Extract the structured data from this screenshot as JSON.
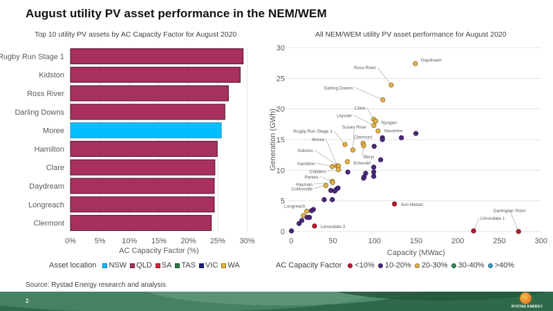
{
  "slide": {
    "title": "August utility PV asset performance in the NEM/WEM",
    "source": "Source: Rystad Energy research and analysis",
    "page_number": "2",
    "logo_text": "RYSTAD ENERGY"
  },
  "chart_data": [
    {
      "type": "bar",
      "orientation": "horizontal",
      "title": "Top 10 utility PV assets by AC Capacity Factor for August 2020",
      "xlabel": "AC Capacity Factor (%)",
      "ylabel": "",
      "xlim": [
        0,
        30
      ],
      "xticks": [
        0,
        5,
        10,
        15,
        20,
        25,
        30
      ],
      "xtick_labels": [
        "0%",
        "5%",
        "10%",
        "15%",
        "20%",
        "25%",
        "30%"
      ],
      "grid": true,
      "categories": [
        "Rugby Run Stage 1",
        "Kidston",
        "Ross River",
        "Darling Downs",
        "Moree",
        "Hamilton",
        "Clare",
        "Daydream",
        "Longreach",
        "Clermont"
      ],
      "values": [
        29.3,
        28.8,
        26.8,
        26.2,
        25.6,
        24.9,
        24.5,
        24.4,
        24.4,
        23.9
      ],
      "locations": [
        "QLD",
        "QLD",
        "QLD",
        "QLD",
        "NSW",
        "QLD",
        "QLD",
        "QLD",
        "QLD",
        "QLD"
      ],
      "legend": {
        "title": "Asset location",
        "position": "bottom",
        "entries": [
          {
            "label": "NSW",
            "color": "#00BFFF"
          },
          {
            "label": "QLD",
            "color": "#A8305E"
          },
          {
            "label": "SA",
            "color": "#D7263D"
          },
          {
            "label": "TAS",
            "color": "#2E7D4F"
          },
          {
            "label": "VIC",
            "color": "#1F1F7A"
          },
          {
            "label": "WA",
            "color": "#E8B830"
          }
        ]
      }
    },
    {
      "type": "scatter",
      "title": "All NEM/WEM utility PV asset performance for August 2020",
      "xlabel": "Capacity (MWac)",
      "ylabel": "Generation (GWh)",
      "xlim": [
        0,
        300
      ],
      "ylim": [
        0,
        30
      ],
      "xticks": [
        0,
        50,
        100,
        150,
        200,
        250,
        300
      ],
      "yticks": [
        0,
        5,
        10,
        15,
        20,
        25,
        30
      ],
      "grid": true,
      "legend": {
        "title": "AC Capacity Factor",
        "position": "bottom",
        "entries": [
          {
            "label": "<10%",
            "color": "#C0182E"
          },
          {
            "label": "10-20%",
            "color": "#4B2A7B"
          },
          {
            "label": "20-30%",
            "color": "#E3B24A"
          },
          {
            "label": "30-40%",
            "color": "#2E8B57"
          },
          {
            "label": ">40%",
            "color": "#3BA3C7"
          }
        ]
      },
      "points": [
        {
          "x": 149,
          "y": 27.4,
          "cf": "20-30%",
          "label": "Daydream",
          "lx": 8,
          "ly": -3,
          "anchor": "start"
        },
        {
          "x": 120,
          "y": 23.9,
          "cf": "20-30%",
          "label": "Ross River",
          "lx": -22,
          "ly": -23,
          "anchor": "end"
        },
        {
          "x": 110,
          "y": 21.5,
          "cf": "20-30%",
          "label": "Darling Downs",
          "lx": -43,
          "ly": -15,
          "anchor": "end"
        },
        {
          "x": 99,
          "y": 18.3,
          "cf": "20-30%",
          "label": "Clare",
          "lx": -12,
          "ly": -14,
          "anchor": "end"
        },
        {
          "x": 101.5,
          "y": 18.0,
          "cf": "20-30%",
          "label": "Nyngan",
          "lx": 8,
          "ly": 4,
          "anchor": "start"
        },
        {
          "x": 99.3,
          "y": 17.3,
          "cf": "20-30%",
          "label": "Lilyvale",
          "lx": -32,
          "ly": -12,
          "anchor": "end"
        },
        {
          "x": 104.3,
          "y": 16.4,
          "cf": "20-30%",
          "label": "Nevertire",
          "lx": 9,
          "ly": 2,
          "anchor": "start"
        },
        {
          "x": 64.5,
          "y": 14.2,
          "cf": "20-30%",
          "label": "Rugby Run Stage 1",
          "lx": -18,
          "ly": -17,
          "anchor": "end"
        },
        {
          "x": 74,
          "y": 13.3,
          "cf": "20-30%",
          "label": "Susan River",
          "lx": 2,
          "ly": -31,
          "anchor": "middle"
        },
        {
          "x": 86.3,
          "y": 14.4,
          "cf": "20-30%",
          "label": "Clermont",
          "lx": 0,
          "ly": -7,
          "anchor": "middle"
        },
        {
          "x": 87,
          "y": 14.0,
          "cf": "20-30%",
          "label": "Beryl",
          "lx": 0,
          "ly": 18,
          "anchor": "start"
        },
        {
          "x": 67.5,
          "y": 11.4,
          "cf": "20-30%",
          "label": "Emerald",
          "lx": 9,
          "ly": 4,
          "anchor": "start"
        },
        {
          "x": 55,
          "y": 10.7,
          "cf": "20-30%",
          "label": "Moree",
          "lx": -18,
          "ly": -36,
          "anchor": "end"
        },
        {
          "x": 56.7,
          "y": 10.7,
          "cf": "20-30%",
          "label": "Kidston",
          "lx": -37,
          "ly": -20,
          "anchor": "end"
        },
        {
          "x": 49.3,
          "y": 10.6,
          "cf": "20-30%",
          "label": "Hamilton",
          "lx": -25,
          "ly": -2,
          "anchor": "end"
        },
        {
          "x": 56.7,
          "y": 10.1,
          "cf": "20-30%",
          "label": "Childers",
          "lx": -18,
          "ly": 5,
          "anchor": "end"
        },
        {
          "x": 49.3,
          "y": 8.2,
          "cf": "20-30%",
          "label": "Parkes",
          "lx": -20,
          "ly": -4,
          "anchor": "end"
        },
        {
          "x": 49.8,
          "y": 8.0,
          "cf": "20-30%",
          "label": "Hayman",
          "lx": -29,
          "ly": 5,
          "anchor": "end"
        },
        {
          "x": 41.5,
          "y": 7.5,
          "cf": "20-30%",
          "label": "Collinsville",
          "lx": -19,
          "ly": 7,
          "anchor": "end"
        },
        {
          "x": 18.6,
          "y": 3.3,
          "cf": "20-30%",
          "label": "Longreach",
          "lx": -2,
          "ly": -5,
          "anchor": "end"
        },
        {
          "x": 14.7,
          "y": 2.6,
          "cf": "20-30%",
          "label": ""
        },
        {
          "x": 124,
          "y": 4.5,
          "cf": "<10%",
          "label": "Sun Metals",
          "lx": 9,
          "ly": 3,
          "anchor": "start"
        },
        {
          "x": 28,
          "y": 0.9,
          "cf": "<10%",
          "label": "Limondale 2",
          "lx": 9,
          "ly": 3,
          "anchor": "start"
        },
        {
          "x": 219,
          "y": 0.1,
          "cf": "<10%",
          "label": "Limondale 1",
          "lx": 10,
          "ly": -16,
          "anchor": "start"
        },
        {
          "x": 273,
          "y": 0.0,
          "cf": "<10%",
          "label": "Darlington Point",
          "lx": -13,
          "ly": -28,
          "anchor": "middle"
        },
        {
          "x": 149.7,
          "y": 16.0,
          "cf": "10-20%",
          "label": ""
        },
        {
          "x": 132.3,
          "y": 15.3,
          "cf": "10-20%",
          "label": ""
        },
        {
          "x": 109.5,
          "y": 15.3,
          "cf": "10-20%",
          "label": ""
        },
        {
          "x": 109.5,
          "y": 15.0,
          "cf": "10-20%",
          "label": ""
        },
        {
          "x": 99.6,
          "y": 13.9,
          "cf": "10-20%",
          "label": ""
        },
        {
          "x": 107.4,
          "y": 11.7,
          "cf": "10-20%",
          "label": ""
        },
        {
          "x": 99.1,
          "y": 10.5,
          "cf": "10-20%",
          "label": ""
        },
        {
          "x": 99.1,
          "y": 9.7,
          "cf": "10-20%",
          "label": ""
        },
        {
          "x": 99.1,
          "y": 9.0,
          "cf": "10-20%",
          "label": ""
        },
        {
          "x": 89.4,
          "y": 9.5,
          "cf": "10-20%",
          "label": ""
        },
        {
          "x": 87.5,
          "y": 8.9,
          "cf": "10-20%",
          "label": ""
        },
        {
          "x": 86.9,
          "y": 8.7,
          "cf": "10-20%",
          "label": ""
        },
        {
          "x": 68,
          "y": 9.7,
          "cf": "10-20%",
          "label": ""
        },
        {
          "x": 56.2,
          "y": 7.1,
          "cf": "10-20%",
          "label": ""
        },
        {
          "x": 54.3,
          "y": 6.9,
          "cf": "10-20%",
          "label": ""
        },
        {
          "x": 52.3,
          "y": 6.6,
          "cf": "10-20%",
          "label": ""
        },
        {
          "x": 47.6,
          "y": 6.7,
          "cf": "10-20%",
          "label": ""
        },
        {
          "x": 49.3,
          "y": 5.2,
          "cf": "10-20%",
          "label": ""
        },
        {
          "x": 39.6,
          "y": 5.2,
          "cf": "10-20%",
          "label": ""
        },
        {
          "x": 26.6,
          "y": 3.6,
          "cf": "10-20%",
          "label": ""
        },
        {
          "x": 24.4,
          "y": 3.4,
          "cf": "10-20%",
          "label": ""
        },
        {
          "x": 21.9,
          "y": 2.3,
          "cf": "10-20%",
          "label": ""
        },
        {
          "x": 19.1,
          "y": 2.3,
          "cf": "10-20%",
          "label": ""
        },
        {
          "x": 12.7,
          "y": 1.8,
          "cf": "10-20%",
          "label": ""
        },
        {
          "x": 9.4,
          "y": 1.3,
          "cf": "10-20%",
          "label": ""
        },
        {
          "x": 0.3,
          "y": 0.1,
          "cf": "10-20%",
          "label": ""
        }
      ]
    }
  ]
}
